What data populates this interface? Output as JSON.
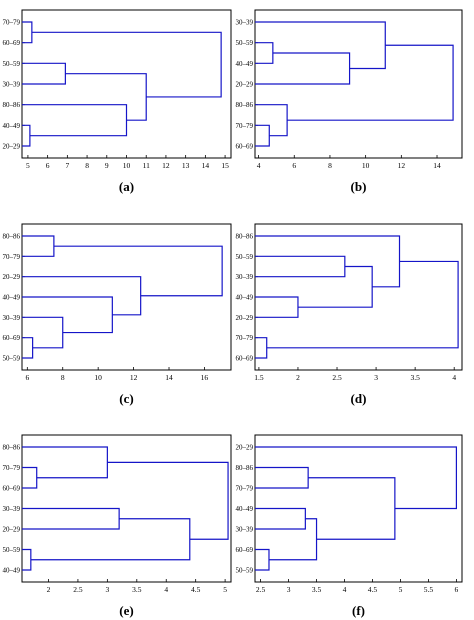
{
  "line_color": "#1515c8",
  "frame_color": "#000000",
  "chart_data": [
    {
      "type": "dendrogram",
      "panel_label": "(a)",
      "leaves": [
        "70–79",
        "60–69",
        "50–59",
        "30–39",
        "80–86",
        "40–49",
        "20–29"
      ],
      "xticks": [
        5,
        6,
        7,
        8,
        9,
        10,
        11,
        12,
        13,
        14,
        15
      ],
      "xlim": [
        4.7,
        15.3
      ],
      "merges": [
        {
          "a": 0,
          "b": 1,
          "h": 5.2
        },
        {
          "a": 2,
          "b": 3,
          "h": 6.9
        },
        {
          "a": 5,
          "b": 6,
          "h": 5.1
        },
        {
          "a": 4,
          "b": 9,
          "h": 10.0
        },
        {
          "a": 8,
          "b": 10,
          "h": 11.0
        },
        {
          "a": 7,
          "b": 11,
          "h": 14.8
        }
      ]
    },
    {
      "type": "dendrogram",
      "panel_label": "(b)",
      "leaves": [
        "30–39",
        "50–59",
        "40–49",
        "20–29",
        "80–86",
        "70–79",
        "60–69"
      ],
      "xticks": [
        4,
        6,
        8,
        10,
        12,
        14
      ],
      "xlim": [
        3.8,
        15.4
      ],
      "merges": [
        {
          "a": 1,
          "b": 2,
          "h": 4.8
        },
        {
          "a": 7,
          "b": 3,
          "h": 9.1
        },
        {
          "a": 5,
          "b": 6,
          "h": 4.6
        },
        {
          "a": 4,
          "b": 9,
          "h": 5.6
        },
        {
          "a": 0,
          "b": 8,
          "h": 11.1
        },
        {
          "a": 11,
          "b": 10,
          "h": 14.9
        }
      ]
    },
    {
      "type": "dendrogram",
      "panel_label": "(c)",
      "leaves": [
        "80–86",
        "70–79",
        "20–29",
        "40–49",
        "30–39",
        "60–69",
        "50–59"
      ],
      "xticks": [
        6,
        8,
        10,
        12,
        14,
        16
      ],
      "xlim": [
        5.7,
        17.5
      ],
      "merges": [
        {
          "a": 0,
          "b": 1,
          "h": 7.5
        },
        {
          "a": 5,
          "b": 6,
          "h": 6.3
        },
        {
          "a": 4,
          "b": 8,
          "h": 8.0
        },
        {
          "a": 3,
          "b": 9,
          "h": 10.8
        },
        {
          "a": 2,
          "b": 10,
          "h": 12.4
        },
        {
          "a": 7,
          "b": 11,
          "h": 17.0
        }
      ]
    },
    {
      "type": "dendrogram",
      "panel_label": "(d)",
      "leaves": [
        "80–86",
        "50–59",
        "30–39",
        "40–49",
        "20–29",
        "70–79",
        "60–69"
      ],
      "xticks": [
        1.5,
        2,
        2.5,
        3,
        3.5,
        4
      ],
      "xticklabels": [
        "1.5",
        "2",
        "2.5",
        "3",
        "3.5",
        "4"
      ],
      "xlim": [
        1.45,
        4.1
      ],
      "merges": [
        {
          "a": 1,
          "b": 2,
          "h": 2.6
        },
        {
          "a": 3,
          "b": 4,
          "h": 2.0
        },
        {
          "a": 7,
          "b": 8,
          "h": 2.95
        },
        {
          "a": 0,
          "b": 9,
          "h": 3.3
        },
        {
          "a": 5,
          "b": 6,
          "h": 1.6
        },
        {
          "a": 10,
          "b": 11,
          "h": 4.05
        }
      ]
    },
    {
      "type": "dendrogram",
      "panel_label": "(e)",
      "leaves": [
        "80–86",
        "70–79",
        "60–69",
        "30–39",
        "20–29",
        "50–59",
        "40–49"
      ],
      "xticks": [
        2,
        2.5,
        3,
        3.5,
        4,
        4.5,
        5
      ],
      "xticklabels": [
        "2",
        "2.5",
        "3",
        "3.5",
        "4",
        "4.5",
        "5"
      ],
      "xlim": [
        1.55,
        5.1
      ],
      "merges": [
        {
          "a": 1,
          "b": 2,
          "h": 1.8
        },
        {
          "a": 0,
          "b": 7,
          "h": 3.0
        },
        {
          "a": 3,
          "b": 4,
          "h": 3.2
        },
        {
          "a": 5,
          "b": 6,
          "h": 1.7
        },
        {
          "a": 9,
          "b": 10,
          "h": 4.4
        },
        {
          "a": 8,
          "b": 11,
          "h": 5.05
        }
      ]
    },
    {
      "type": "dendrogram",
      "panel_label": "(f)",
      "leaves": [
        "20–29",
        "80–86",
        "70–79",
        "40–49",
        "30–39",
        "60–69",
        "50–59"
      ],
      "xticks": [
        2.5,
        3,
        3.5,
        4,
        4.5,
        5,
        5.5,
        6
      ],
      "xticklabels": [
        "2.5",
        "3",
        "3.5",
        "4",
        "4.5",
        "5",
        "5.5",
        "6"
      ],
      "xlim": [
        2.4,
        6.1
      ],
      "merges": [
        {
          "a": 1,
          "b": 2,
          "h": 3.35
        },
        {
          "a": 3,
          "b": 4,
          "h": 3.3
        },
        {
          "a": 5,
          "b": 6,
          "h": 2.65
        },
        {
          "a": 8,
          "b": 9,
          "h": 3.5
        },
        {
          "a": 7,
          "b": 10,
          "h": 4.9
        },
        {
          "a": 0,
          "b": 11,
          "h": 6.0
        }
      ]
    }
  ]
}
